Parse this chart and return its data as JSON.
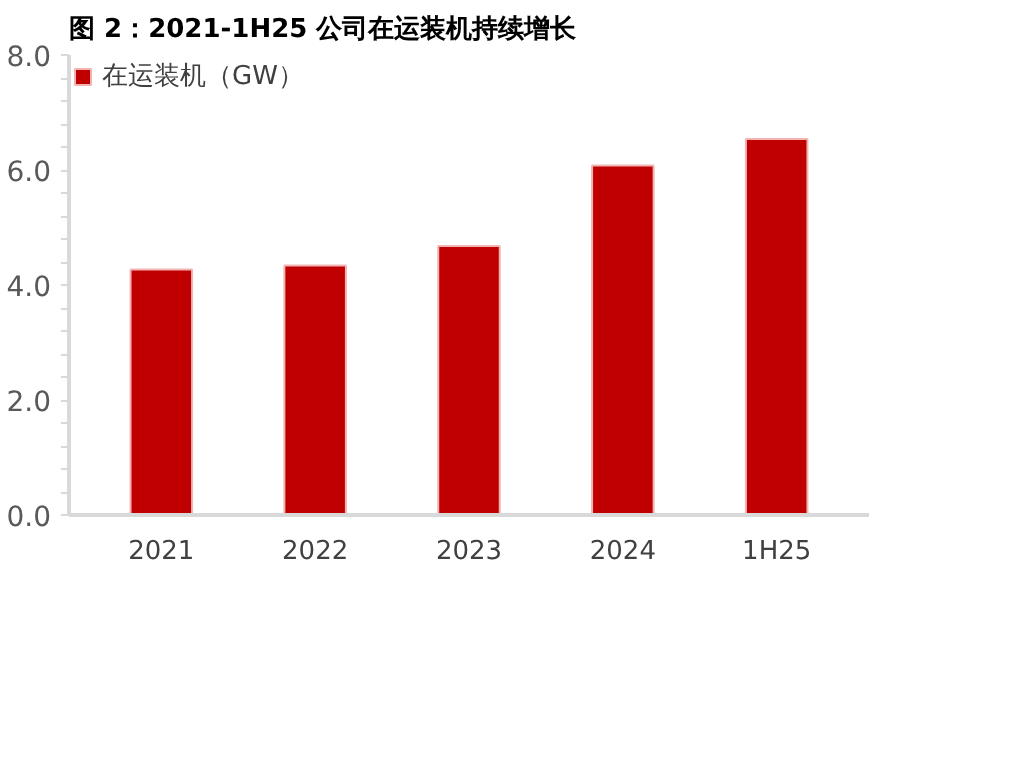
{
  "chart_data": {
    "type": "bar",
    "title": "图 2：2021-1H25 公司在运装机持续增长",
    "categories": [
      "2021",
      "2022",
      "2023",
      "2024",
      "1H25"
    ],
    "series": [
      {
        "name": "在运装机（GW）",
        "color": "#c00000",
        "values": [
          4.27,
          4.34,
          4.68,
          6.08,
          6.54
        ]
      }
    ],
    "ylim": [
      0,
      8
    ],
    "yticks": [
      {
        "value": 0,
        "label": "0.0"
      },
      {
        "value": 2,
        "label": "2.0"
      },
      {
        "value": 4,
        "label": "4.0"
      },
      {
        "value": 6,
        "label": "6.0"
      },
      {
        "value": 8,
        "label": "8.0"
      }
    ],
    "grid": false,
    "legend": "top left"
  }
}
